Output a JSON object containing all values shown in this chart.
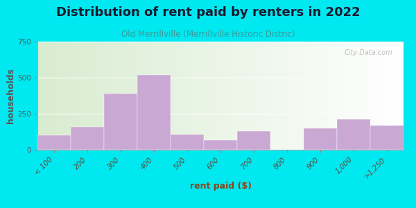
{
  "title": "Distribution of rent paid by renters in 2022",
  "subtitle": "Old Merrillville (Merrillville Historic Distric)",
  "xlabel": "rent paid ($)",
  "ylabel": "households",
  "categories": [
    "< 100",
    "200",
    "300",
    "400",
    "500",
    "600",
    "700",
    "800",
    "900",
    "1,000",
    ">1,250"
  ],
  "values": [
    100,
    160,
    390,
    520,
    105,
    65,
    130,
    0,
    150,
    210,
    170
  ],
  "bar_color": "#c9a8d4",
  "bar_edge_color": "#c9a8d4",
  "background_color": "#00e8f0",
  "ylim": [
    0,
    750
  ],
  "yticks": [
    0,
    250,
    500,
    750
  ],
  "title_fontsize": 13,
  "subtitle_fontsize": 8.5,
  "axis_label_fontsize": 9,
  "tick_fontsize": 7.5,
  "watermark_text": "City-Data.com",
  "title_color": "#1a1a2e",
  "subtitle_color": "#3a9a9a",
  "xlabel_color": "#8b4513",
  "ylabel_color": "#555555"
}
